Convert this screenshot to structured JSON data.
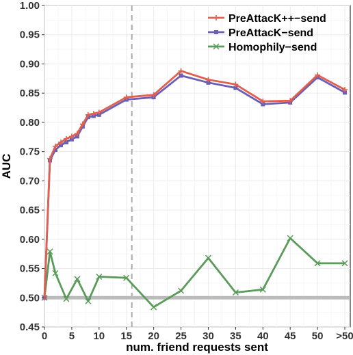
{
  "chart_data": {
    "type": "line",
    "xlabel": "num. friend requests sent",
    "ylabel": "AUC",
    "ylim": [
      0.45,
      1.0
    ],
    "y_ticks": [
      0.45,
      0.5,
      0.55,
      0.6,
      0.65,
      0.7,
      0.75,
      0.8,
      0.85,
      0.9,
      0.95,
      1.0
    ],
    "y_tick_labels": [
      "0.45",
      "0.50",
      "0.55",
      "0.60",
      "0.65",
      "0.70",
      "0.75",
      "0.80",
      "0.85",
      "0.90",
      "0.95",
      "1.00"
    ],
    "x_ticks": [
      0,
      5,
      10,
      15,
      20,
      25,
      30,
      35,
      40,
      45,
      50,
      55
    ],
    "x_tick_labels": [
      "0",
      "5",
      "10",
      "15",
      "20",
      "25",
      "30",
      "35",
      "40",
      "45",
      "50",
      ">50"
    ],
    "xlim": [
      0,
      56
    ],
    "grid": true,
    "legend_position": "top-right",
    "reference_lines": [
      {
        "orientation": "vertical",
        "x": 16,
        "style": "dashed",
        "color": "#aaaaaa"
      },
      {
        "orientation": "horizontal",
        "y": 0.5,
        "style": "solid",
        "color": "#bbbbbb"
      }
    ],
    "series": [
      {
        "name": "PreAttacK++−send",
        "color": "#e0604f",
        "marker": "plus",
        "x": [
          0,
          1,
          2,
          3,
          4,
          5,
          6,
          7,
          8,
          9,
          10,
          15,
          20,
          25,
          30,
          35,
          40,
          45,
          50,
          55
        ],
        "y": [
          0.5,
          0.738,
          0.759,
          0.766,
          0.772,
          0.776,
          0.781,
          0.797,
          0.813,
          0.815,
          0.817,
          0.843,
          0.847,
          0.888,
          0.873,
          0.865,
          0.836,
          0.837,
          0.881,
          0.856
        ]
      },
      {
        "name": "PreAttacK−send",
        "color": "#6a5fb5",
        "marker": "square",
        "x": [
          0,
          1,
          2,
          3,
          4,
          5,
          6,
          7,
          8,
          9,
          10,
          15,
          20,
          25,
          30,
          35,
          40,
          45,
          50,
          55
        ],
        "y": [
          0.5,
          0.735,
          0.753,
          0.761,
          0.766,
          0.771,
          0.776,
          0.793,
          0.809,
          0.811,
          0.813,
          0.839,
          0.843,
          0.88,
          0.868,
          0.859,
          0.831,
          0.834,
          0.877,
          0.851
        ]
      },
      {
        "name": "Homophily−send",
        "color": "#5a9a5a",
        "marker": "x",
        "x": [
          0,
          1,
          2,
          4,
          6,
          8,
          10,
          15,
          20,
          25,
          30,
          35,
          40,
          45,
          50,
          55
        ],
        "y": [
          0.5,
          0.579,
          0.542,
          0.498,
          0.532,
          0.494,
          0.536,
          0.534,
          0.484,
          0.512,
          0.568,
          0.509,
          0.514,
          0.602,
          0.559,
          0.559
        ]
      }
    ]
  }
}
